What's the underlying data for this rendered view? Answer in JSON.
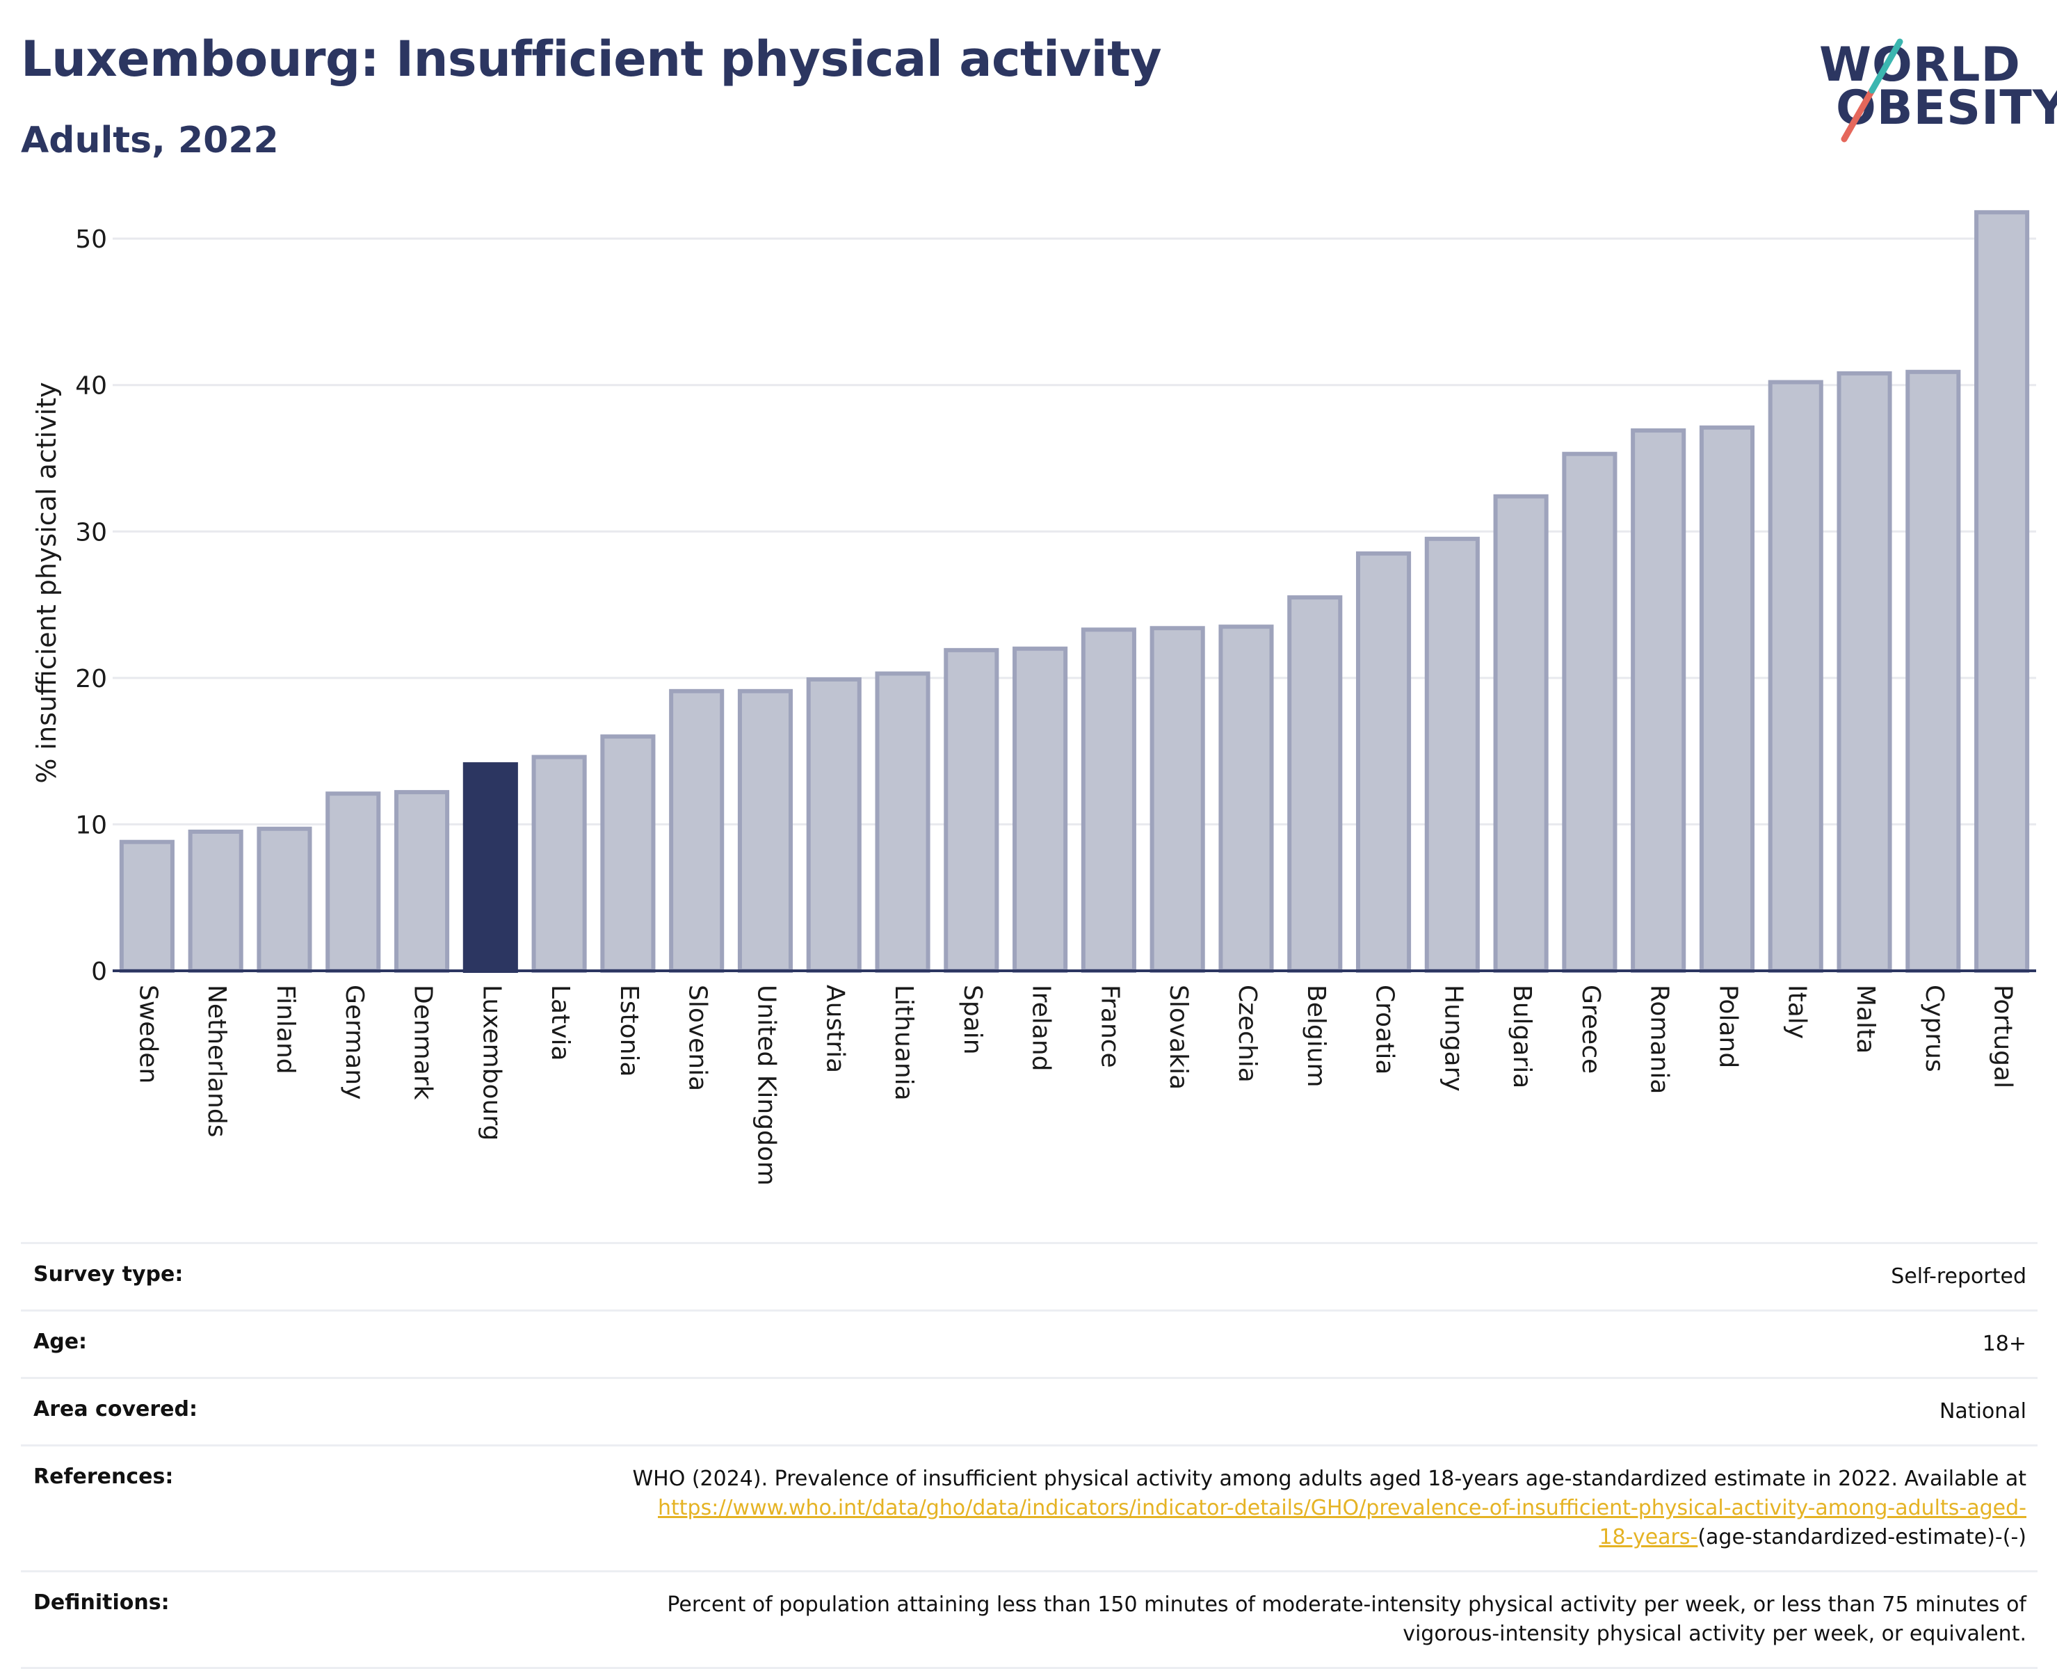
{
  "header": {
    "title": "Luxembourg: Insufficient physical activity",
    "subtitle": "Adults, 2022"
  },
  "logo": {
    "line1": "WORLD",
    "line2": "OBESITY",
    "accent_colors": [
      "#e5675b",
      "#3bb6b0"
    ]
  },
  "chart_data": {
    "type": "bar",
    "ylabel": "% insufficient physical activity",
    "xlabel": "",
    "ylim": [
      0,
      53
    ],
    "yticks": [
      0,
      10,
      20,
      30,
      40,
      50
    ],
    "grid": true,
    "highlight": "Luxembourg",
    "colors": {
      "bar": "#bfc3d1",
      "bar_border": "#9ea3bc",
      "highlight": "#2c3661",
      "axis": "#2c3661",
      "grid": "#e8e9ee"
    },
    "categories": [
      "Sweden",
      "Netherlands",
      "Finland",
      "Germany",
      "Denmark",
      "Luxembourg",
      "Latvia",
      "Estonia",
      "Slovenia",
      "United Kingdom",
      "Austria",
      "Lithuania",
      "Spain",
      "Ireland",
      "France",
      "Slovakia",
      "Czechia",
      "Belgium",
      "Croatia",
      "Hungary",
      "Bulgaria",
      "Greece",
      "Romania",
      "Poland",
      "Italy",
      "Malta",
      "Cyprus",
      "Portugal"
    ],
    "values": [
      8.8,
      9.5,
      9.7,
      12.1,
      12.2,
      14.1,
      14.6,
      16.0,
      19.1,
      19.1,
      19.9,
      20.3,
      21.9,
      22.0,
      23.3,
      23.4,
      23.5,
      25.5,
      28.5,
      29.5,
      32.4,
      35.3,
      36.9,
      37.1,
      40.2,
      40.8,
      40.9,
      51.8
    ]
  },
  "details": {
    "survey_type_label": "Survey type:",
    "survey_type_value": "Self-reported",
    "age_label": "Age:",
    "age_value": "18+",
    "area_label": "Area covered:",
    "area_value": "National",
    "references_label": "References:",
    "references_text": "WHO (2024). Prevalence of insufficient physical activity among adults aged 18-years age-standardized estimate in 2022. Available at",
    "references_link_line1": "https://www.who.int/data/gho/data/indicators/indicator-details/GHO/prevalence-of-insufficient-physical-activity-among-adults-aged-",
    "references_link_line2": "18-years-",
    "references_suffix": "(age-standardized-estimate)-(-)",
    "definitions_label": "Definitions:",
    "definitions_line1": "Percent of population attaining less than 150 minutes of moderate-intensity physical activity per week, or less than 75 minutes of",
    "definitions_line2": "vigorous-intensity physical activity per week, or equivalent."
  }
}
